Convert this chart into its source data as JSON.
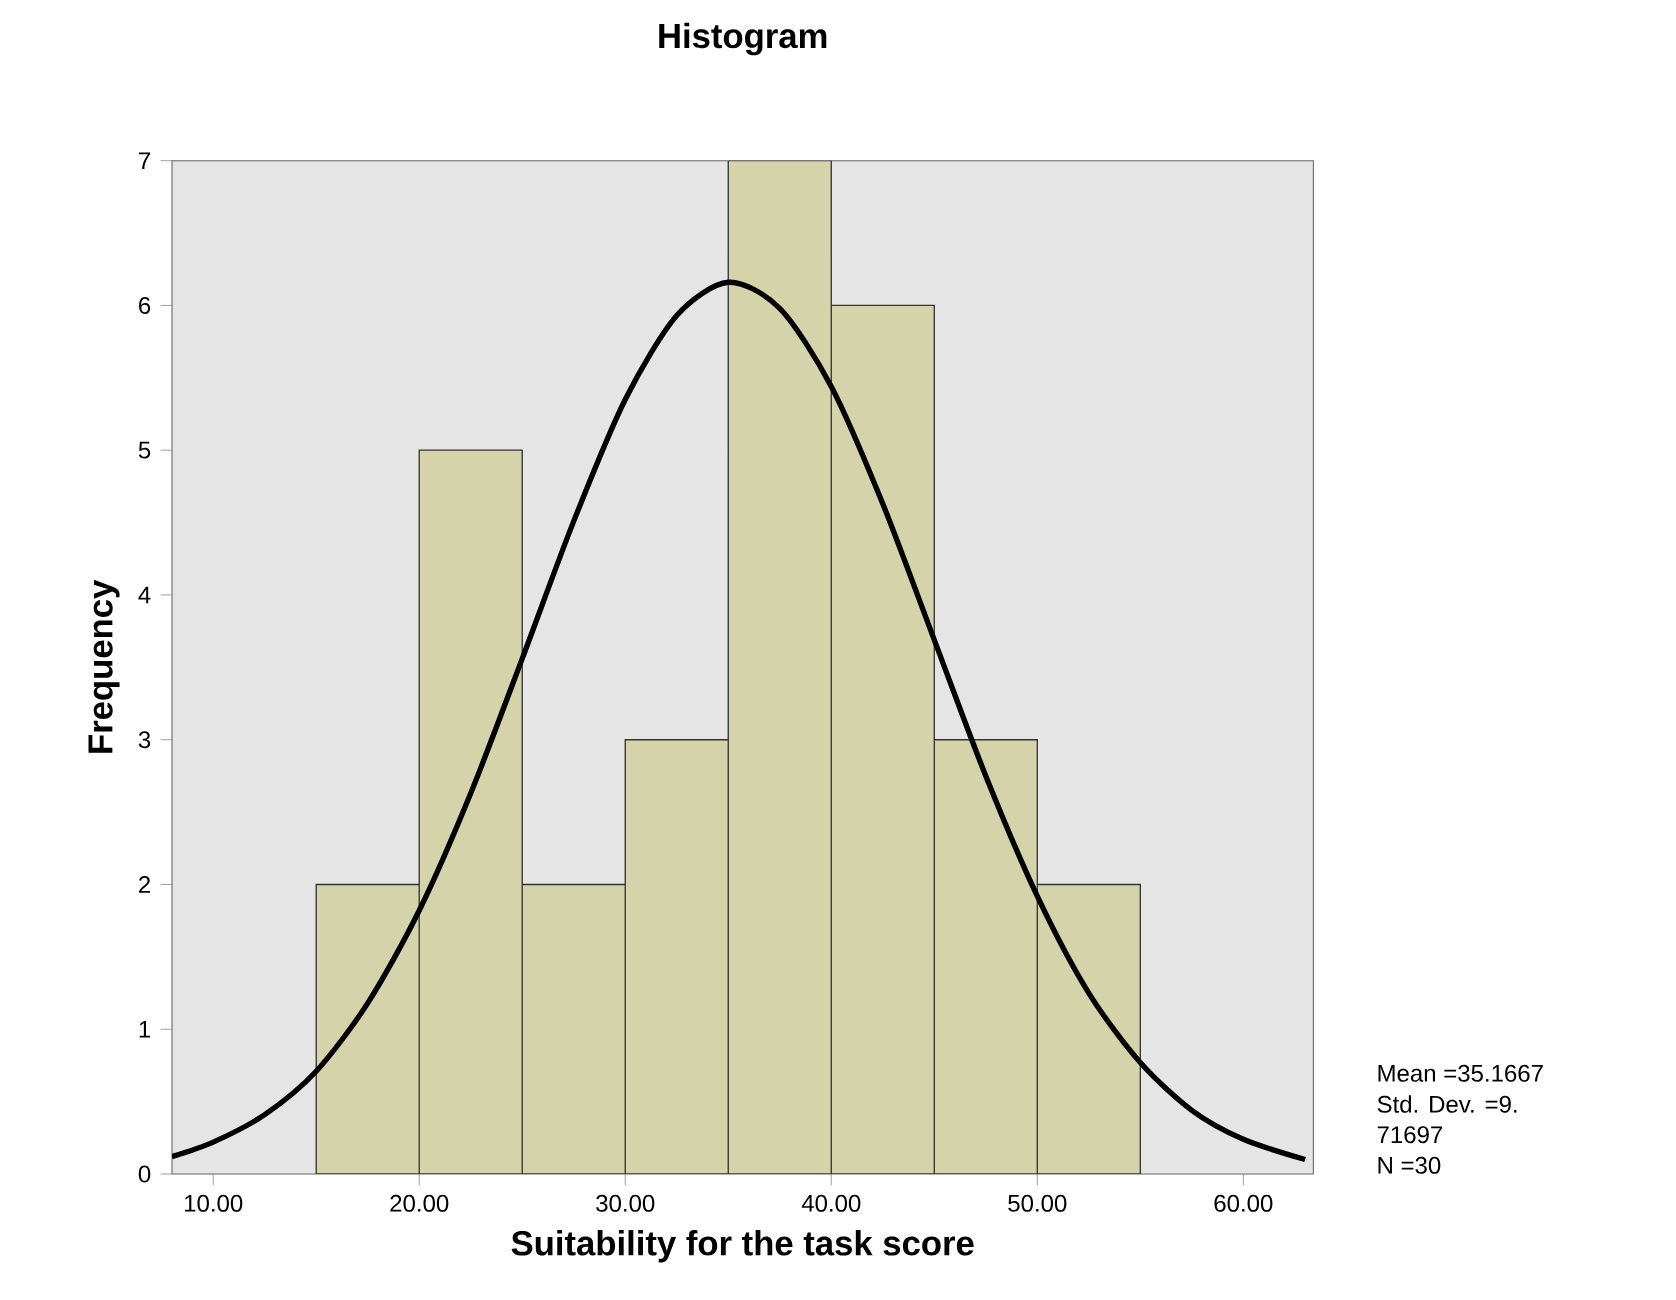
{
  "chart_data": {
    "type": "histogram",
    "title": "Histogram",
    "xlabel": "Suitability for the task score",
    "ylabel": "Frequency",
    "bins": [
      15,
      20,
      25,
      30,
      35,
      40,
      45,
      50,
      55
    ],
    "values": [
      2,
      5,
      2,
      3,
      7,
      6,
      3,
      2
    ],
    "color": "#d4d3a9",
    "series": [
      {
        "type": "line",
        "color": "#000000",
        "x": [
          8,
          10,
          12.5,
          15,
          17.5,
          20,
          22.5,
          25,
          27.5,
          30,
          32.5,
          35,
          37.5,
          40,
          42.5,
          45,
          47.5,
          50,
          52.5,
          55,
          57.5,
          60,
          63
        ],
        "values": [
          0.12,
          0.22,
          0.41,
          0.71,
          1.18,
          1.82,
          2.63,
          3.56,
          4.51,
          5.35,
          5.93,
          6.16,
          5.98,
          5.44,
          4.63,
          3.69,
          2.75,
          1.92,
          1.25,
          0.77,
          0.44,
          0.24,
          0.1
        ]
      }
    ],
    "xlim": [
      8,
      63.4
    ],
    "ylim": [
      0,
      7
    ],
    "xticks": [
      {
        "value": 10,
        "label": "10.00"
      },
      {
        "value": 20,
        "label": "20.00"
      },
      {
        "value": 30,
        "label": "30.00"
      },
      {
        "value": 40,
        "label": "40.00"
      },
      {
        "value": 50,
        "label": "50.00"
      },
      {
        "value": 60,
        "label": "60.00"
      }
    ],
    "yticks": [
      0,
      1,
      2,
      3,
      4,
      5,
      6,
      7
    ],
    "grid": false,
    "annotations": [
      "Mean =35.1667",
      "Std. Dev. =9.",
      "71697",
      "N =30"
    ]
  }
}
